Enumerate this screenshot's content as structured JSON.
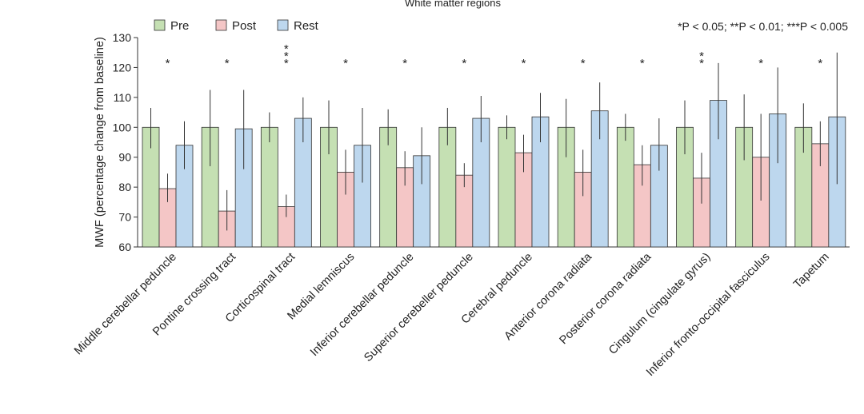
{
  "chart_data": {
    "type": "bar",
    "title": "White matter regions",
    "ylabel": "MWF (percentage change from baseline)",
    "xlabel": "",
    "ylim": [
      60,
      130
    ],
    "yticks": [
      60,
      70,
      80,
      90,
      100,
      110,
      120,
      130
    ],
    "grid": false,
    "legend_position": "top-left",
    "significance_note": "*P < 0.05; **P < 0.01; ***P < 0.005",
    "categories": [
      "Middle cerebellar peduncle",
      "Pontine crossing tract",
      "Corticospinal tract",
      "Medial lemniscus",
      "Inferior cerebellar peduncle",
      "Superior cerebeller peduncle",
      "Cerebral peduncle",
      "Anterior corona radiata",
      "Posterior corona radiata",
      "Cingulum (cingulate gyrus)",
      "Inferior fronto-occipital fasciculus",
      "Tapetum"
    ],
    "significance": [
      "*",
      "*",
      "***",
      "*",
      "*",
      "*",
      "*",
      "*",
      "*",
      "**",
      "*",
      "*"
    ],
    "series": [
      {
        "name": "Pre",
        "color": "#c5e0b3",
        "values": [
          100,
          100,
          100,
          100,
          100,
          100,
          100,
          100,
          100,
          100,
          100,
          100
        ],
        "error_low": [
          93,
          87,
          95,
          91,
          94,
          94,
          96,
          90,
          95.5,
          91,
          89,
          91.5
        ],
        "error_high": [
          106.5,
          112.5,
          105,
          109,
          106,
          106.5,
          104,
          109.5,
          104.5,
          109,
          111,
          108
        ]
      },
      {
        "name": "Post",
        "color": "#f4c6c6",
        "values": [
          79.5,
          72,
          73.5,
          85,
          86.5,
          84,
          91.5,
          85,
          87.5,
          83,
          90,
          94.5
        ],
        "error_low": [
          75,
          65.5,
          70,
          77.5,
          80.5,
          80,
          85,
          77,
          80.5,
          74.5,
          75.5,
          87
        ],
        "error_high": [
          84.5,
          79,
          77.5,
          92.5,
          92,
          88,
          97.5,
          92.5,
          94,
          91.5,
          104.5,
          102
        ]
      },
      {
        "name": "Rest",
        "color": "#bdd7ee",
        "values": [
          94,
          99.5,
          103,
          94,
          90.5,
          103,
          103.5,
          105.5,
          94,
          109,
          104.5,
          103.5
        ],
        "error_low": [
          86,
          86,
          95,
          81.5,
          81,
          95,
          95,
          96,
          85.5,
          96,
          88,
          81
        ],
        "error_high": [
          102,
          112.5,
          110,
          106.5,
          100,
          110.5,
          111.5,
          115,
          103,
          121.5,
          120,
          125
        ]
      }
    ]
  }
}
